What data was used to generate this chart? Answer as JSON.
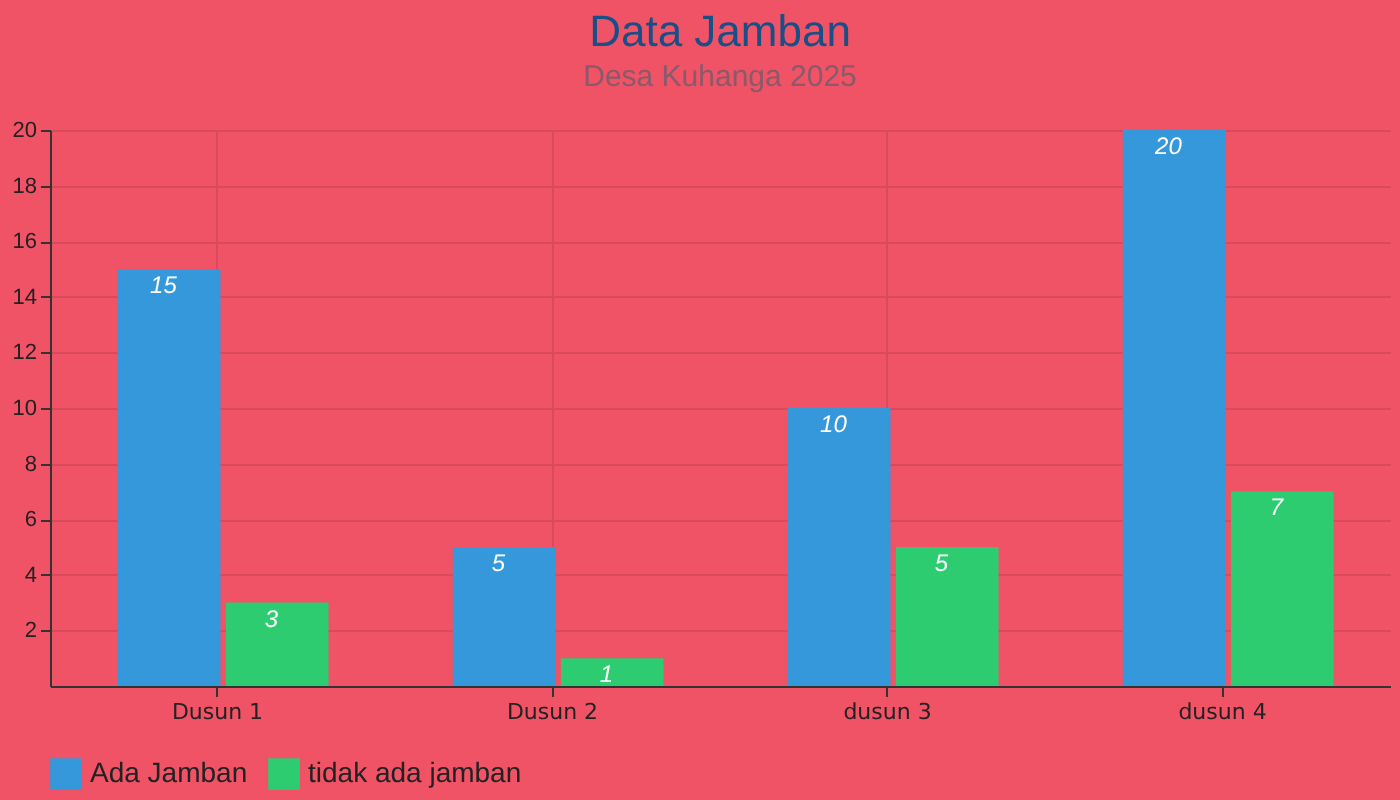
{
  "chart_data": {
    "type": "bar",
    "title": "Data Jamban",
    "subtitle": "Desa Kuhanga 2025",
    "categories": [
      "Dusun 1",
      "Dusun 2",
      "dusun 3",
      "dusun 4"
    ],
    "series": [
      {
        "name": "Ada Jamban",
        "color": "#3498db",
        "values": [
          15,
          5,
          10,
          20
        ]
      },
      {
        "name": "tidak ada jamban",
        "color": "#2ecc71",
        "values": [
          3,
          1,
          5,
          7
        ]
      }
    ],
    "ylim": [
      0,
      20
    ],
    "yticks": [
      2,
      4,
      6,
      8,
      10,
      12,
      14,
      16,
      18,
      20
    ],
    "grid": true,
    "legend": "bottom",
    "data_labels": true
  }
}
